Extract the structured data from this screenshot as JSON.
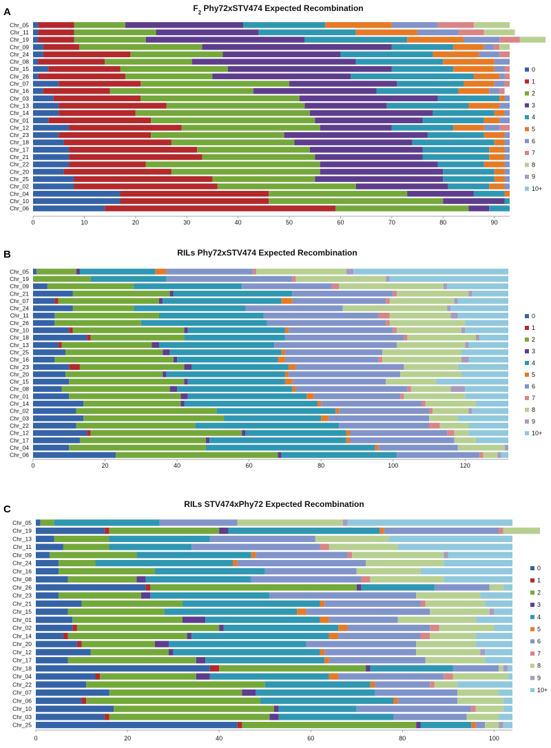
{
  "legend": {
    "labels": [
      "0",
      "1",
      "2",
      "3",
      "4",
      "5",
      "6",
      "7",
      "8",
      "9",
      "10+"
    ],
    "colors": [
      "#3563a7",
      "#b3292c",
      "#74a83b",
      "#5e3d8d",
      "#2f97b2",
      "#e67a25",
      "#8194c9",
      "#d98586",
      "#b7d092",
      "#a79bc3",
      "#91c8dd"
    ]
  },
  "chart_data": [
    {
      "type": "stacked-bar-horizontal",
      "letter": "A",
      "title_prefix": "F",
      "title_sub": "2",
      "title_rest": " Phy72xSTV474 Expected Recombination",
      "xlim": [
        0,
        93
      ],
      "xticks": [
        "0",
        "10",
        "20",
        "30",
        "40",
        "50",
        "60",
        "70",
        "80",
        "90"
      ],
      "xtick_values": [
        0,
        10,
        20,
        30,
        40,
        50,
        60,
        70,
        80,
        90
      ],
      "categories": [
        "Chr_05",
        "Chr_11",
        "Chr_19",
        "Chr_09",
        "Chr_24",
        "Chr_08",
        "Chr_15",
        "Chr_26",
        "Chr_07",
        "Chr_16",
        "Chr_03",
        "Chr_13",
        "Chr_14",
        "Chr_01",
        "Chr_12",
        "Chr_23",
        "Chr_18",
        "Chr_17",
        "Chr_21",
        "Chr_22",
        "Chr_20",
        "Chr_25",
        "Chr_02",
        "Chr_04",
        "Chr_10",
        "Chr_06"
      ],
      "segments": [
        [
          1,
          7,
          10,
          23,
          16,
          13,
          9,
          7,
          7,
          0,
          0
        ],
        [
          1,
          7,
          16,
          20,
          19,
          12,
          8,
          5,
          6,
          0,
          0
        ],
        [
          1,
          7,
          14,
          31,
          20,
          11,
          7,
          4,
          5,
          0,
          0
        ],
        [
          2,
          7,
          24,
          37,
          12,
          6,
          2,
          1,
          2,
          0,
          0
        ],
        [
          2,
          17,
          18,
          23,
          18,
          9,
          4,
          2,
          0,
          0,
          0
        ],
        [
          1,
          13,
          17,
          32,
          17,
          10,
          3,
          0,
          0,
          0,
          0
        ],
        [
          3,
          14,
          21,
          32,
          12,
          8,
          2,
          1,
          0,
          0,
          0
        ],
        [
          1,
          17,
          17,
          27,
          24,
          5,
          1,
          1,
          0,
          0,
          0
        ],
        [
          5,
          16,
          29,
          21,
          13,
          6,
          2,
          1,
          0,
          0,
          0
        ],
        [
          2,
          13,
          28,
          24,
          16,
          6,
          2,
          1,
          0,
          0,
          0
        ],
        [
          4,
          17,
          31,
          27,
          12,
          1,
          1,
          0,
          0,
          0,
          0
        ],
        [
          5,
          21,
          27,
          16,
          16,
          6,
          2,
          0,
          0,
          0,
          0
        ],
        [
          5,
          15,
          34,
          24,
          12,
          2,
          1,
          0,
          0,
          0,
          0
        ],
        [
          3,
          20,
          32,
          21,
          12,
          3,
          2,
          0,
          0,
          0,
          0
        ],
        [
          7,
          22,
          27,
          14,
          12,
          6,
          3,
          2,
          0,
          0,
          0
        ],
        [
          5,
          18,
          26,
          28,
          11,
          4,
          1,
          0,
          0,
          0,
          0
        ],
        [
          6,
          21,
          24,
          23,
          16,
          2,
          1,
          0,
          0,
          0,
          0
        ],
        [
          7,
          25,
          22,
          22,
          13,
          3,
          1,
          0,
          0,
          0,
          0
        ],
        [
          7,
          26,
          22,
          21,
          13,
          3,
          1,
          0,
          0,
          0,
          0
        ],
        [
          7,
          15,
          34,
          23,
          9,
          4,
          1,
          0,
          0,
          0,
          0
        ],
        [
          6,
          21,
          29,
          24,
          10,
          2,
          1,
          0,
          0,
          0,
          0
        ],
        [
          8,
          27,
          20,
          25,
          10,
          2,
          1,
          0,
          0,
          0,
          0
        ],
        [
          8,
          28,
          27,
          18,
          8,
          3,
          1,
          0,
          0,
          0,
          0
        ],
        [
          17,
          29,
          27,
          13,
          6,
          1,
          0,
          0,
          0,
          0,
          0
        ],
        [
          17,
          29,
          34,
          12,
          1,
          0,
          0,
          0,
          0,
          0,
          0
        ],
        [
          14,
          45,
          26,
          4,
          4,
          0,
          0,
          0,
          0,
          0,
          0
        ]
      ]
    },
    {
      "type": "stacked-bar-horizontal",
      "letter": "B",
      "title_prefix": "RILs Phy72xSTV474 Expected Recombination",
      "title_sub": "",
      "title_rest": "",
      "xlim": [
        0,
        132
      ],
      "xticks": [
        "0",
        "20",
        "40",
        "60",
        "80",
        "100",
        "120"
      ],
      "xtick_values": [
        0,
        20,
        40,
        60,
        80,
        100,
        120
      ],
      "categories": [
        "Chr_05",
        "Chr_19",
        "Chr_09",
        "Chr_21",
        "Chr_07",
        "Chr_24",
        "Chr_11",
        "Chr_26",
        "Chr_10",
        "Chr_18",
        "Chr_13",
        "Chr_25",
        "Chr_16",
        "Chr_23",
        "Chr_20",
        "Chr_15",
        "Chr_08",
        "Chr_01",
        "Chr_14",
        "Chr_02",
        "Chr_03",
        "Chr_22",
        "Chr_12",
        "Chr_17",
        "Chr_04",
        "Chr_06"
      ],
      "segments": [
        [
          1,
          0,
          11,
          1,
          21,
          3,
          24,
          1,
          25,
          2,
          43
        ],
        [
          0,
          0,
          16,
          0,
          21,
          0,
          35,
          1,
          25,
          1,
          33
        ],
        [
          4,
          0,
          24,
          0,
          30,
          0,
          25,
          2,
          29,
          1,
          17
        ],
        [
          11,
          0,
          27,
          1,
          33,
          0,
          28,
          1,
          20,
          1,
          10
        ],
        [
          6,
          1,
          28,
          1,
          33,
          3,
          26,
          1,
          18,
          1,
          14
        ],
        [
          11,
          0,
          17,
          0,
          31,
          0,
          27,
          0,
          29,
          1,
          16
        ],
        [
          6,
          0,
          29,
          0,
          29,
          0,
          32,
          3,
          17,
          2,
          14
        ],
        [
          6,
          0,
          24,
          0,
          35,
          0,
          33,
          1,
          21,
          0,
          12
        ],
        [
          10,
          1,
          31,
          1,
          27,
          1,
          29,
          1,
          18,
          1,
          12
        ],
        [
          15,
          1,
          26,
          0,
          28,
          0,
          33,
          1,
          19,
          1,
          8
        ],
        [
          7,
          1,
          25,
          2,
          32,
          0,
          34,
          0,
          19,
          1,
          11
        ],
        [
          9,
          0,
          27,
          2,
          31,
          1,
          27,
          0,
          22,
          0,
          13
        ],
        [
          6,
          0,
          33,
          1,
          28,
          2,
          26,
          1,
          22,
          2,
          11
        ],
        [
          10,
          3,
          29,
          2,
          27,
          2,
          30,
          0,
          15,
          0,
          14
        ],
        [
          9,
          0,
          27,
          1,
          33,
          1,
          31,
          0,
          17,
          0,
          13
        ],
        [
          10,
          0,
          32,
          1,
          27,
          2,
          26,
          0,
          14,
          0,
          20
        ],
        [
          8,
          0,
          30,
          2,
          32,
          1,
          31,
          1,
          11,
          4,
          12
        ],
        [
          10,
          0,
          31,
          2,
          33,
          2,
          24,
          1,
          17,
          0,
          12
        ],
        [
          14,
          0,
          27,
          1,
          37,
          1,
          28,
          1,
          14,
          0,
          9
        ],
        [
          12,
          0,
          39,
          0,
          33,
          1,
          25,
          1,
          10,
          1,
          10
        ],
        [
          14,
          0,
          39,
          0,
          27,
          2,
          28,
          0,
          8,
          0,
          14
        ],
        [
          12,
          0,
          33,
          0,
          40,
          0,
          25,
          3,
          8,
          0,
          11
        ],
        [
          15,
          1,
          42,
          1,
          28,
          1,
          27,
          2,
          4,
          0,
          11
        ],
        [
          13,
          0,
          35,
          1,
          38,
          1,
          29,
          0,
          6,
          0,
          9
        ],
        [
          10,
          0,
          38,
          0,
          47,
          1,
          22,
          0,
          13,
          1,
          0
        ],
        [
          23,
          0,
          45,
          1,
          32,
          0,
          23,
          1,
          4,
          1,
          2
        ]
      ]
    },
    {
      "type": "stacked-bar-horizontal",
      "letter": "C",
      "title_prefix": "RILs STV474xPhy72 Expected Recombination",
      "title_sub": "",
      "title_rest": "",
      "xlim": [
        0,
        104
      ],
      "xticks": [
        "0",
        "20",
        "40",
        "60",
        "80",
        "100"
      ],
      "xtick_values": [
        0,
        20,
        40,
        60,
        80,
        100
      ],
      "categories": [
        "Chr_05",
        "Chr_19",
        "Chr_13",
        "Chr_11",
        "Chr_09",
        "Chr_24",
        "Chr_16",
        "Chr_08",
        "Chr_26",
        "Chr_23",
        "Chr_21",
        "Chr_15",
        "Chr_01",
        "Chr_02",
        "Chr_14",
        "Chr_20",
        "Chr_12",
        "Chr_17",
        "Chr_18",
        "Chr_04",
        "Chr_22",
        "Chr_07",
        "Chr_06",
        "Chr_10",
        "Chr_03",
        "Chr_25"
      ],
      "segments": [
        [
          1,
          0,
          3,
          0,
          23,
          0,
          17,
          0,
          23,
          1,
          36
        ],
        [
          15,
          1,
          24,
          2,
          33,
          1,
          25,
          1,
          8,
          0,
          0
        ],
        [
          4,
          0,
          12,
          0,
          22,
          0,
          23,
          0,
          16,
          0,
          27
        ],
        [
          6,
          0,
          10,
          0,
          18,
          0,
          28,
          2,
          15,
          0,
          25
        ],
        [
          3,
          0,
          19,
          0,
          25,
          1,
          20,
          1,
          20,
          1,
          14
        ],
        [
          5,
          0,
          8,
          0,
          30,
          1,
          28,
          0,
          17,
          0,
          15
        ],
        [
          5,
          0,
          21,
          0,
          24,
          0,
          20,
          0,
          14,
          0,
          20
        ],
        [
          7,
          0,
          15,
          2,
          23,
          0,
          24,
          2,
          16,
          0,
          15
        ],
        [
          24,
          1,
          45,
          1,
          16,
          0,
          12,
          0,
          3,
          0,
          2
        ],
        [
          5,
          0,
          18,
          2,
          26,
          0,
          32,
          0,
          14,
          0,
          7
        ],
        [
          10,
          0,
          22,
          0,
          30,
          1,
          21,
          1,
          13,
          0,
          6
        ],
        [
          7,
          0,
          21,
          0,
          29,
          2,
          27,
          0,
          13,
          1,
          4
        ],
        [
          8,
          0,
          24,
          5,
          25,
          2,
          15,
          0,
          17,
          0,
          8
        ],
        [
          8,
          1,
          31,
          1,
          25,
          2,
          18,
          2,
          12,
          0,
          4
        ],
        [
          6,
          1,
          26,
          1,
          30,
          2,
          18,
          2,
          10,
          0,
          8
        ],
        [
          9,
          1,
          16,
          3,
          30,
          0,
          24,
          0,
          13,
          0,
          8
        ],
        [
          12,
          0,
          17,
          1,
          32,
          1,
          20,
          0,
          14,
          1,
          6
        ],
        [
          7,
          0,
          28,
          2,
          26,
          1,
          21,
          0,
          13,
          0,
          6
        ],
        [
          38,
          2,
          32,
          1,
          18,
          0,
          10,
          0,
          1,
          1,
          1
        ],
        [
          13,
          1,
          21,
          3,
          26,
          2,
          23,
          2,
          12,
          0,
          1
        ],
        [
          11,
          0,
          39,
          0,
          23,
          1,
          12,
          1,
          5,
          0,
          12
        ],
        [
          16,
          0,
          29,
          3,
          26,
          0,
          18,
          0,
          9,
          0,
          3
        ],
        [
          10,
          1,
          38,
          0,
          29,
          1,
          13,
          0,
          10,
          0,
          2
        ],
        [
          17,
          0,
          35,
          1,
          17,
          0,
          25,
          1,
          6,
          0,
          2
        ],
        [
          15,
          1,
          35,
          2,
          25,
          0,
          16,
          0,
          7,
          0,
          3
        ],
        [
          44,
          1,
          38,
          1,
          11,
          1,
          2,
          0,
          3,
          1,
          2
        ]
      ]
    }
  ]
}
